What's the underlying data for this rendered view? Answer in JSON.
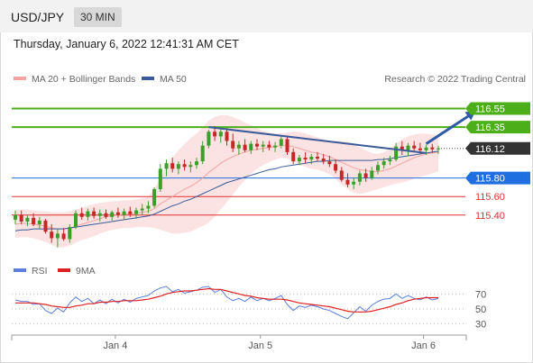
{
  "header": {
    "symbol": "USD/JPY",
    "timeframe": "30 MIN",
    "datetime": "Thursday, January 6, 2022 12:41:31 AM CET"
  },
  "legend": {
    "ma20_label": "MA 20 + Bollinger Bands",
    "ma20_color": "#f4a3a3",
    "ma50_label": "MA 50",
    "ma50_color": "#3b5b9a",
    "copyright": "Research © 2022 Trading Central"
  },
  "levels": [
    {
      "value": 116.55,
      "label": "116.55",
      "kind": "target",
      "color": "#4caf1a"
    },
    {
      "value": 116.35,
      "label": "116.35",
      "kind": "target",
      "color": "#4caf1a"
    },
    {
      "value": 116.12,
      "label": "116.12",
      "kind": "last",
      "color": "#333333"
    },
    {
      "value": 115.8,
      "label": "115.80",
      "kind": "pivot",
      "color": "#1f6fe0"
    },
    {
      "value": 115.6,
      "label": "115.60",
      "kind": "support",
      "color": "#e03030"
    },
    {
      "value": 115.4,
      "label": "115.40",
      "kind": "support",
      "color": "#e03030"
    }
  ],
  "rsi": {
    "rsi_label": "RSI",
    "rsi_color": "#5b7fdb",
    "ma_label": "9MA",
    "ma_color": "#e02020",
    "ticks": [
      70,
      50,
      30
    ]
  },
  "chart_data": {
    "type": "candlestick",
    "x_axis_ticks": [
      "Jan 4",
      "Jan 5",
      "Jan 6"
    ],
    "ylim": [
      114.95,
      116.75
    ],
    "candles": [
      [
        115.35,
        115.45,
        115.3,
        115.4
      ],
      [
        115.4,
        115.45,
        115.3,
        115.33
      ],
      [
        115.33,
        115.4,
        115.28,
        115.37
      ],
      [
        115.37,
        115.42,
        115.28,
        115.3
      ],
      [
        115.3,
        115.38,
        115.25,
        115.34
      ],
      [
        115.34,
        115.36,
        115.2,
        115.22
      ],
      [
        115.22,
        115.3,
        115.1,
        115.15
      ],
      [
        115.15,
        115.25,
        115.05,
        115.2
      ],
      [
        115.2,
        115.26,
        115.12,
        115.14
      ],
      [
        115.14,
        115.3,
        115.1,
        115.27
      ],
      [
        115.27,
        115.45,
        115.25,
        115.42
      ],
      [
        115.42,
        115.48,
        115.35,
        115.38
      ],
      [
        115.38,
        115.47,
        115.34,
        115.44
      ],
      [
        115.44,
        115.48,
        115.36,
        115.39
      ],
      [
        115.39,
        115.46,
        115.33,
        115.42
      ],
      [
        115.42,
        115.46,
        115.36,
        115.38
      ],
      [
        115.38,
        115.45,
        115.34,
        115.43
      ],
      [
        115.43,
        115.48,
        115.37,
        115.4
      ],
      [
        115.4,
        115.47,
        115.35,
        115.44
      ],
      [
        115.44,
        115.49,
        115.38,
        115.41
      ],
      [
        115.41,
        115.48,
        115.36,
        115.45
      ],
      [
        115.45,
        115.52,
        115.4,
        115.47
      ],
      [
        115.47,
        115.55,
        115.42,
        115.5
      ],
      [
        115.5,
        115.7,
        115.48,
        115.68
      ],
      [
        115.68,
        115.95,
        115.65,
        115.9
      ],
      [
        115.9,
        116.0,
        115.82,
        115.96
      ],
      [
        115.96,
        116.02,
        115.86,
        115.9
      ],
      [
        115.9,
        115.98,
        115.84,
        115.95
      ],
      [
        115.95,
        116.0,
        115.88,
        115.92
      ],
      [
        115.92,
        115.98,
        115.86,
        115.94
      ],
      [
        115.94,
        116.02,
        115.9,
        115.98
      ],
      [
        115.98,
        116.2,
        115.95,
        116.15
      ],
      [
        116.15,
        116.32,
        116.12,
        116.3
      ],
      [
        116.3,
        116.36,
        116.2,
        116.25
      ],
      [
        116.25,
        116.35,
        116.18,
        116.3
      ],
      [
        116.3,
        116.34,
        116.15,
        116.2
      ],
      [
        116.2,
        116.28,
        116.08,
        116.12
      ],
      [
        116.12,
        116.2,
        116.05,
        116.16
      ],
      [
        116.16,
        116.22,
        116.08,
        116.1
      ],
      [
        116.1,
        116.2,
        116.06,
        116.17
      ],
      [
        116.17,
        116.22,
        116.1,
        116.14
      ],
      [
        116.14,
        116.2,
        116.08,
        116.16
      ],
      [
        116.16,
        116.2,
        116.1,
        116.13
      ],
      [
        116.13,
        116.19,
        116.08,
        116.15
      ],
      [
        116.15,
        116.25,
        116.12,
        116.22
      ],
      [
        116.22,
        116.26,
        116.05,
        116.08
      ],
      [
        116.08,
        116.12,
        115.95,
        115.98
      ],
      [
        115.98,
        116.05,
        115.94,
        116.02
      ],
      [
        116.02,
        116.08,
        115.96,
        116.0
      ],
      [
        116.0,
        116.06,
        115.95,
        116.03
      ],
      [
        116.03,
        116.08,
        115.98,
        116.01
      ],
      [
        116.01,
        116.06,
        115.95,
        115.98
      ],
      [
        115.98,
        116.04,
        115.92,
        115.95
      ],
      [
        115.95,
        116.0,
        115.85,
        115.88
      ],
      [
        115.88,
        115.92,
        115.76,
        115.78
      ],
      [
        115.78,
        115.85,
        115.7,
        115.73
      ],
      [
        115.73,
        115.8,
        115.68,
        115.76
      ],
      [
        115.76,
        115.88,
        115.72,
        115.85
      ],
      [
        115.85,
        115.9,
        115.76,
        115.8
      ],
      [
        115.8,
        115.92,
        115.78,
        115.88
      ],
      [
        115.88,
        115.98,
        115.84,
        115.94
      ],
      [
        115.94,
        116.02,
        115.9,
        115.98
      ],
      [
        115.98,
        116.04,
        115.94,
        116.0
      ],
      [
        116.0,
        116.18,
        115.98,
        116.14
      ],
      [
        116.14,
        116.2,
        116.05,
        116.1
      ],
      [
        116.1,
        116.18,
        116.04,
        116.15
      ],
      [
        116.15,
        116.2,
        116.08,
        116.12
      ],
      [
        116.12,
        116.18,
        116.06,
        116.1
      ],
      [
        116.1,
        116.16,
        116.05,
        116.13
      ],
      [
        116.13,
        116.17,
        116.07,
        116.11
      ],
      [
        116.11,
        116.15,
        116.06,
        116.12
      ]
    ],
    "ma20": [
      115.3,
      115.31,
      115.31,
      115.3,
      115.29,
      115.28,
      115.26,
      115.25,
      115.25,
      115.26,
      115.28,
      115.3,
      115.32,
      115.34,
      115.36,
      115.38,
      115.39,
      115.4,
      115.41,
      115.41,
      115.42,
      115.43,
      115.44,
      115.47,
      115.52,
      115.56,
      115.6,
      115.64,
      115.68,
      115.71,
      115.75,
      115.8,
      115.86,
      115.91,
      115.96,
      116.0,
      116.03,
      116.06,
      116.08,
      116.1,
      116.11,
      116.12,
      116.13,
      116.14,
      116.15,
      116.15,
      116.14,
      116.12,
      116.1,
      116.08,
      116.07,
      116.05,
      116.03,
      116.0,
      115.97,
      115.94,
      115.91,
      115.89,
      115.88,
      115.87,
      115.87,
      115.88,
      115.9,
      115.93,
      115.96,
      115.99,
      116.02,
      116.04,
      116.06,
      116.07,
      116.08
    ],
    "bb_upper": [
      115.45,
      115.46,
      115.46,
      115.45,
      115.44,
      115.44,
      115.43,
      115.43,
      115.43,
      115.44,
      115.46,
      115.48,
      115.5,
      115.52,
      115.53,
      115.54,
      115.55,
      115.55,
      115.56,
      115.56,
      115.57,
      115.58,
      115.6,
      115.68,
      115.8,
      115.92,
      116.02,
      116.1,
      116.17,
      116.23,
      116.28,
      116.35,
      116.42,
      116.46,
      116.48,
      116.48,
      116.46,
      116.43,
      116.4,
      116.37,
      116.34,
      116.31,
      116.29,
      116.28,
      116.28,
      116.29,
      116.3,
      116.3,
      116.28,
      116.26,
      116.24,
      116.22,
      116.2,
      116.2,
      116.2,
      116.19,
      116.17,
      116.13,
      116.1,
      116.07,
      116.06,
      116.08,
      116.12,
      116.17,
      116.22,
      116.25,
      116.27,
      116.28,
      116.28,
      116.27,
      116.26
    ],
    "bb_lower": [
      115.15,
      115.16,
      115.16,
      115.15,
      115.13,
      115.11,
      115.08,
      115.05,
      115.05,
      115.07,
      115.1,
      115.13,
      115.15,
      115.17,
      115.2,
      115.22,
      115.24,
      115.25,
      115.26,
      115.26,
      115.27,
      115.27,
      115.27,
      115.26,
      115.24,
      115.22,
      115.2,
      115.2,
      115.21,
      115.22,
      115.25,
      115.28,
      115.32,
      115.38,
      115.46,
      115.54,
      115.62,
      115.7,
      115.78,
      115.85,
      115.9,
      115.94,
      115.97,
      116.0,
      116.02,
      116.01,
      115.98,
      115.94,
      115.92,
      115.9,
      115.89,
      115.87,
      115.84,
      115.79,
      115.73,
      115.68,
      115.64,
      115.63,
      115.64,
      115.66,
      115.68,
      115.7,
      115.72,
      115.74,
      115.75,
      115.77,
      115.79,
      115.81,
      115.83,
      115.85,
      115.87
    ],
    "ma50": [
      115.23,
      115.24,
      115.24,
      115.25,
      115.25,
      115.25,
      115.25,
      115.25,
      115.25,
      115.26,
      115.27,
      115.28,
      115.29,
      115.3,
      115.31,
      115.32,
      115.33,
      115.34,
      115.35,
      115.36,
      115.37,
      115.38,
      115.39,
      115.41,
      115.44,
      115.47,
      115.5,
      115.52,
      115.55,
      115.57,
      115.6,
      115.63,
      115.66,
      115.69,
      115.72,
      115.75,
      115.77,
      115.79,
      115.81,
      115.83,
      115.85,
      115.87,
      115.89,
      115.9,
      115.92,
      115.93,
      115.94,
      115.95,
      115.96,
      115.97,
      115.98,
      115.98,
      115.99,
      115.99,
      115.99,
      115.99,
      115.99,
      115.99,
      115.99,
      115.99,
      116.0,
      116.0,
      116.01,
      116.02,
      116.03,
      116.04,
      116.05,
      116.06,
      116.07,
      116.08,
      116.09
    ],
    "trendline": [
      [
        32,
        116.35
      ],
      [
        68,
        116.07
      ]
    ],
    "projection": [
      [
        68,
        116.17
      ],
      [
        72,
        116.55
      ]
    ],
    "rsi_values": [
      62,
      60,
      60,
      56,
      57,
      48,
      44,
      51,
      46,
      58,
      66,
      60,
      64,
      57,
      62,
      57,
      63,
      58,
      63,
      59,
      64,
      66,
      68,
      74,
      78,
      80,
      73,
      76,
      71,
      73,
      75,
      79,
      80,
      72,
      76,
      66,
      61,
      64,
      60,
      66,
      61,
      64,
      61,
      64,
      68,
      56,
      48,
      54,
      52,
      55,
      53,
      50,
      48,
      44,
      40,
      37,
      45,
      53,
      47,
      55,
      60,
      63,
      64,
      70,
      64,
      68,
      64,
      62,
      66,
      62,
      64
    ],
    "rsi_ma": [
      58,
      58,
      58,
      58,
      57,
      56,
      54,
      53,
      52,
      52,
      54,
      55,
      57,
      57,
      59,
      59,
      60,
      60,
      61,
      61,
      61,
      62,
      63,
      65,
      67,
      70,
      72,
      73,
      74,
      74,
      75,
      76,
      77,
      76,
      76,
      74,
      72,
      70,
      68,
      67,
      65,
      64,
      63,
      63,
      63,
      62,
      60,
      58,
      57,
      56,
      55,
      54,
      53,
      51,
      49,
      47,
      46,
      46,
      46,
      47,
      49,
      51,
      53,
      56,
      58,
      61,
      63,
      64,
      65,
      65,
      65
    ]
  }
}
